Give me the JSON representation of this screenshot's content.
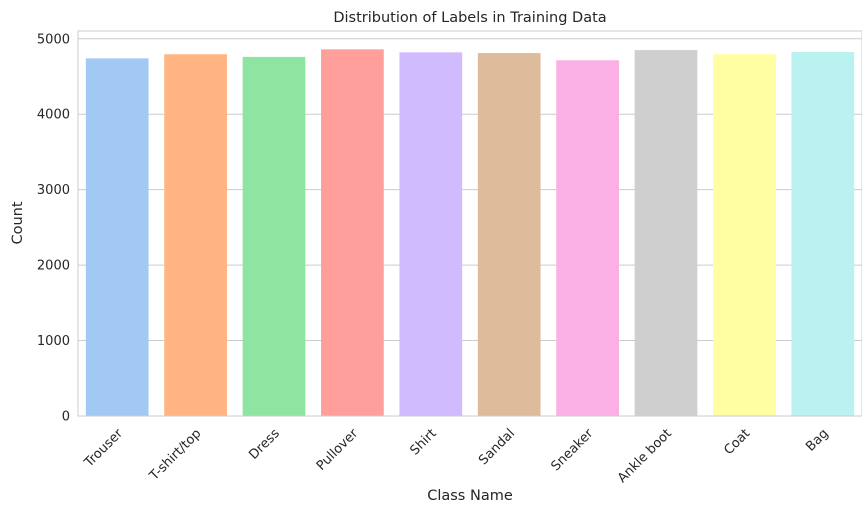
{
  "chart_data": {
    "type": "bar",
    "title": "Distribution of Labels in Training Data",
    "xlabel": "Class Name",
    "ylabel": "Count",
    "categories": [
      "Trouser",
      "T-shirt/top",
      "Dress",
      "Pullover",
      "Shirt",
      "Sandal",
      "Sneaker",
      "Ankle boot",
      "Coat",
      "Bag"
    ],
    "values": [
      4740,
      4795,
      4760,
      4860,
      4820,
      4810,
      4715,
      4850,
      4795,
      4825
    ],
    "colors": [
      "#a1c9f4",
      "#ffb482",
      "#8de5a1",
      "#ff9f9b",
      "#d0bbff",
      "#debb9b",
      "#fab0e4",
      "#cfcfcf",
      "#fffea3",
      "#b9f2f0"
    ],
    "yticks": [
      0,
      1000,
      2000,
      3000,
      4000,
      5000
    ],
    "ylim": [
      0,
      5103
    ],
    "grid": "y",
    "x_tick_rotation": 45
  }
}
